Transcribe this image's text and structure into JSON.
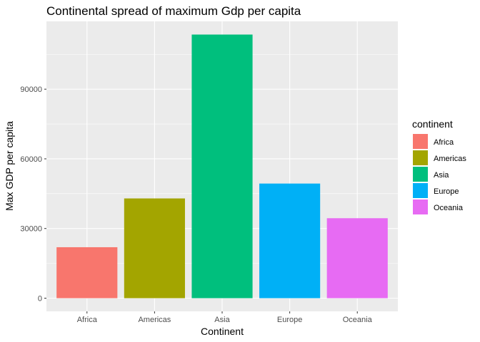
{
  "chart_data": {
    "type": "bar",
    "title": "Continental spread of maximum Gdp per capita",
    "xlabel": "Continent",
    "ylabel": "Max GDP per capita",
    "categories": [
      "Africa",
      "Americas",
      "Asia",
      "Europe",
      "Oceania"
    ],
    "values": [
      21951,
      42952,
      113523,
      49357,
      34435
    ],
    "colors": [
      "#F8766D",
      "#A3A500",
      "#00BF7D",
      "#00B0F6",
      "#E76BF3"
    ],
    "ylim": [
      -5676,
      119199
    ],
    "yticks": [
      0,
      30000,
      60000,
      90000
    ],
    "ytick_labels": [
      "0",
      "30000",
      "60000",
      "90000"
    ],
    "grid": true,
    "background": "#EBEBEB",
    "legend": {
      "title": "continent",
      "placement": "right",
      "entries": [
        "Africa",
        "Americas",
        "Asia",
        "Europe",
        "Oceania"
      ]
    }
  }
}
